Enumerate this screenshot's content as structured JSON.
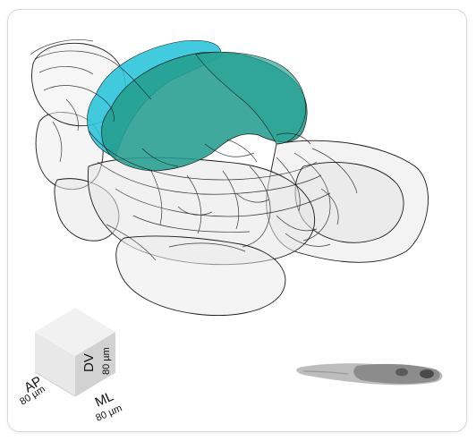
{
  "scale_bar": {
    "ap": {
      "label": "AP",
      "length": "80 µm"
    },
    "dv": {
      "label": "DV",
      "length": "80 µm"
    },
    "ml": {
      "label": "ML",
      "length": "80 µm"
    }
  },
  "regions": {
    "highlight_a_color": "#2ec4dc",
    "highlight_b_color": "#239d8e",
    "brain_outline_color": "#e9e9e9",
    "line_color": "#1a1a1a"
  },
  "icons": {
    "orientation": "larva-orientation-icon"
  }
}
